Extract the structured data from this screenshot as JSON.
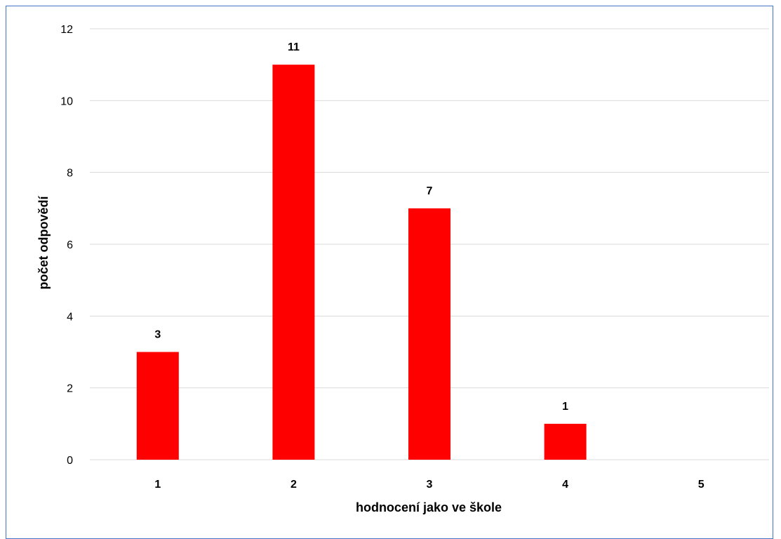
{
  "chart_data": {
    "type": "bar",
    "categories": [
      "1",
      "2",
      "3",
      "4",
      "5"
    ],
    "values": [
      3,
      11,
      7,
      1,
      0
    ],
    "data_labels": [
      "3",
      "11",
      "7",
      "1",
      ""
    ],
    "xlabel": "hodnocení jako ve škole",
    "ylabel": "počet odpovědí",
    "ylim": [
      0,
      12
    ],
    "yticks": [
      "0",
      "2",
      "4",
      "6",
      "8",
      "10",
      "12"
    ],
    "ytick_values": [
      0,
      2,
      4,
      6,
      8,
      10,
      12
    ],
    "grid": true,
    "legend": "none",
    "bar_color": "#ff0000",
    "grid_color": "#d9d9d9",
    "frame_color": "#4472c4"
  }
}
